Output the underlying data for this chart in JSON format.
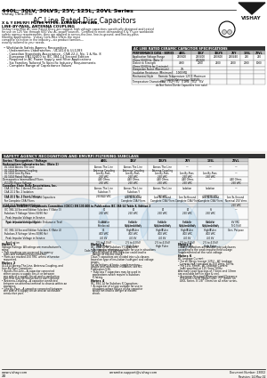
{
  "title_series": "440L, 30LV, 30LVS, 25Y, 125L, 20VL Series",
  "subtitle_company": "Vishay Cera-Mite",
  "subtitle_product": "AC Line Rated Disc Capacitors",
  "section1_title": "X & Y EMI/RFI FILTER TYPES: ACROSS-THE-LINE,\nLINE-BY-PASS, ANTENNA COUPLING",
  "body_lines": [
    "Vishay Cera-Mite AC Line Rated Discs are rugged, high voltage capacitors specifically designed and tested",
    "for use on 125 Vac through 600 Vac AC power sources.  Certified to meet demanding X & Y type worldwide",
    "safety agency requirements, they are applied in across-the-line, line-to-ground, and line-by-pass",
    "filtering applications.  Vishay Cera-Mite offers the most",
    "complete selection in the industry—six product families—",
    "exactly tailored to your needs."
  ],
  "bullets": [
    "Worldwide Safety Agency Recognition",
    "Underwriters Laboratories - UL1414 & UL1283",
    "Canadian Standards Association - CSA 22.2, No. 1 & No. 8",
    "European EN132400 to IEC 384-14 Second Edition",
    "Required in AC Power Supply and Filter Applications",
    "Six Families Tailored To Specific Industry Requirements",
    "Complete Range of Capacitance Values"
  ],
  "spec_table_title": "AC LINE RATED CERAMIC CAPACITOR SPECIFICATIONS",
  "spec_col_headers": [
    "PERFORMANCE DATA - SERIES",
    "440L",
    "30LY",
    "30LYS",
    "25Y",
    "125L",
    "20VL"
  ],
  "spec_rows": [
    [
      "Application Voltage Range\n(Vrms 50/60 Hz, (Note 1)",
      "250/600",
      "250/400\n250/600",
      "250/600",
      "250/440",
      "250",
      "250"
    ],
    [
      "Dielectric Strength\n(Vrms 50/60 Hz for 1 minute)",
      "4000",
      "2000",
      "2500",
      "2500",
      "2000",
      "1000"
    ],
    [
      "Dissipation Factor (Maximum)",
      "2%",
      "",
      "",
      "",
      "",
      ""
    ],
    [
      "Insulation Resistance (Minimum)",
      "1000 MΩ",
      "",
      "",
      "",
      "",
      ""
    ],
    [
      "Mechanical Style",
      "Remote Temperature 125°C Maximum\nCoating Material per UL8549",
      "",
      "",
      "",
      "",
      ""
    ],
    [
      "Temperature Characteristic",
      "Y5U   Y5U   Y5U   X 1ME   Y5U   Y5V\ndo Not Series Divide Capacitors (see note)",
      "",
      "",
      "",
      "",
      ""
    ]
  ],
  "safety_table_title": "SAFETY AGENCY RECOGNITION AND EMI/RFI FILTERING SUBCLASS",
  "safety_col_headers": [
    "Series / Recognition / Voltage",
    "440L",
    "30LY",
    "30LYS",
    "25Y",
    "125L",
    "20VL"
  ],
  "safety_rows": [
    {
      "label": "Underwriters Laboratories Inc.  (Note 2)",
      "vals": [
        "",
        "",
        "",
        "",
        "",
        ""
      ],
      "header": true
    },
    {
      "label": "  UL 1414 Across The Line\n  UL 1414 Antenna-Coupling",
      "vals": [
        "Across The Line\nAntenna Coupling",
        "Across The Line\nAntenna Coupling",
        "Across The Line\nAntenna-Coupling",
        "—",
        "—",
        "—"
      ],
      "header": false
    },
    {
      "label": "  UL 1414 Line-By-Pass\n  UL 1414 Rated Voltage",
      "vals": [
        "Line-By-Pass\n250 VRC",
        "Line-By-Pass\n250 VRC",
        "Line-By-Pass\n250 VRC",
        "Line-By-Pass\n250 VRC",
        "Line-By-Pass\n250 VRC",
        "—"
      ],
      "header": false
    },
    {
      "label": "Demagnetics International Filters\n  VL1283 Power Voltage",
      "vals": [
        "440 Ohms\n250 VRC",
        "440 Ohms\n250 VRC",
        "440 Ohms\n250 VRC",
        "440 Ohms\n250 VRC",
        "—",
        "440 Ohms\n250 VRC"
      ],
      "header": false
    },
    {
      "label": "Canadian State Body Associations, Inc.",
      "vals": [
        "",
        "",
        "",
        "",
        "",
        ""
      ],
      "header": true
    },
    {
      "label": "  CSA 22.2 No. 1 Across-The-Line\n  CSA 22.2 No. 2 Isolation\n  CSA 22.2 No. 3 Rated Voltage",
      "vals": [
        "Across The Line\nSubclass Y\n250/600 VRC",
        "Across The Line\nSubclass Y\n250/600 VRC",
        "Across The Line\n\n250 VRC",
        "Isolation\n\n—",
        "Isolation\n\n250/600 VRC",
        "—"
      ],
      "header": false
    },
    {
      "label": "  CSA 22.2 No. 4 Line-to-Ground Capacitors\n  For Complete CSA Filters\n  CSA 22.4 No. 5 Rated Voltage",
      "vals": [
        "—",
        "Line-To-Ground\nComplete CSA Filters",
        "Line-To-Ground\nComplete CSA Filters",
        "Line-To-Ground\nComplete CSA Filters",
        "Line-To-Ground\nComplete CSA Filters",
        "Line-To-Ground\nNominal 250 Vrms\n250 VRC"
      ],
      "header": false
    },
    {
      "label": "European CENELEC Components Committee (CECC) EN 130 400 to Publication IEC 384-14 Table 8, Edition 2",
      "vals": [
        "",
        "",
        "",
        "",
        "",
        ""
      ],
      "header": true
    },
    {
      "label": "  IEC 384-14 Second Edition Subclass Y (Note 3)\n  Subclass Y Voltage (Vrms 50/60 Hz)\n    Peak Impulse Voltage in Service\n    Type of Insulation (Subtype)",
      "vals": [
        "Y1\n250 VRC\n\nDouble or\nReinforced",
        "Y2\n250 VRC\n\nBasic or\nSupplementary",
        "Y2\n250 VRC\n\nBasic or\nSupplementary",
        "Y2\n250 VRC\n\nBasic or\nSupplementary",
        "Ya\n250 VRC\n\nBasic or\nSupplementary",
        "—"
      ],
      "header": false
    },
    {
      "label": "    Peak Impulse Voltage (Before Endurance Test)",
      "vals": [
        "8 kV",
        "8 kV\n2.5 to 4.0 kV\nHigh Pulse",
        "8 kV\n2.5 to 4.0 kV\nHigh Pulse",
        "8 kV\n2.5 to 4.0 kV\nHigh Pulse",
        "4.0 kV\n2.5 to 4.0 kV\nHigh Pulse",
        "kV VRC\nTo 0.9 kV\nGen. Purpose"
      ],
      "header": false
    },
    {
      "label": "  IEC 384-14 Second Edition Subclass X (Note 4)\n  Subclass X Voltage (Vrms 50/60 Hz)\n    Peak Impulse Voltage in Service\n    Application",
      "vals": [
        "X1\n400 VRC\n4.0 kV\n2.5 to 4.0 kV\nHigh Pulse\nCode 440 - 25/32 x 125/500 days",
        "X1\n400 VRC\n4.0 kV\n2.5 to 4.0 kV\nHigh Pulse",
        "X1\n400 VRC\n4.0 kV\n2.5 to 4.0 kV\nHigh Pulse",
        "X1\n400 VRC\n4.0 kV\n2.5 to 4.0 kV\nHigh Pulse",
        "X1\n400 VRC\n4.0 kV\n2.5 to 4.0 kV\nHigh Pulse",
        "—"
      ],
      "header": false
    }
  ],
  "notes": [
    {
      "title": "Notes 1",
      "lines": [
        "Voltage Ratings: All ratings are manufacturer's",
        "rating.",
        "• Part markings are governed by agency",
        "  rules and customer requirements.",
        "• Parts are marked 250 VRC unless otherwise",
        "  requested."
      ]
    },
    {
      "title": "Notes 2",
      "lines": [
        "UL1414 Across-The-Line, Antenna-Coupling, and",
        "Line-By-Pass Capacitors:",
        "• Across-The-Line—A capacitor connected",
        "  either across a supply circuit or between",
        "  one side of a supply circuit and a conductive",
        "  part that may be connected to earth ground.",
        "• Antenna-Coupling—A capacitor connected",
        "  between an antenna terminal to chassis within an",
        "  appliance.",
        "• Line-By-Pass—A capacitor connected between",
        "  one side of a supply circuit and an accessible",
        "  conductive part."
      ]
    },
    {
      "title": "Notes 3",
      "lines": [
        "IEC 384-14 for Subclass Y Capacitors:",
        "• A capacitor of a type suitable for use in situations",
        "  where failure of the capacitor could lead to",
        "  danger of electric shock.",
        "Class Y capacitors are divided into sub-classes",
        "based on type of insulation (subtype) and voltage",
        "ranges.",
        "For definitions of basic, supplementary,",
        "double and reinforced insulation, see IEC",
        "Publication 536.",
        "• Subclass Y capacitors may be used in",
        "  applications which require a Subclass",
        "  X rating."
      ]
    },
    {
      "title": "Notes 4",
      "lines": [
        "IEC 384-14 for Subclass X Capacitors:",
        "• A capacitor of a type suitable for use in",
        "  situations where failure of the capacitor",
        "  would not lead to danger of electric",
        "  shock."
      ]
    },
    {
      "title": "Notes 5",
      "lines": [
        "Class X capacitors are divided into subclasses",
        "according to the peak impulse field voltage",
        "Supplemented on the next voltage."
      ]
    },
    {
      "title": "Notes 6",
      "lines": [
        "AC Leakage Current:",
        "• For all Series (except 125L) - AC Leakage",
        "  Current (mA) specified at 250 Vrms, 60 Hz.",
        "• For 125L Series - AC Leakage Current",
        "  (mA) specified at 125 Vrms, 60Hz.",
        "Alternate Lead Spacings of 7.5mm and 10mm",
        "are available both in tape & reel.",
        "• European Required Minimum Lead Clearance",
        "  (Prevents Use of Media Coils): 7/7 (6mm) on",
        "  440L Series, 8 1/8\" (3mm) on all other series."
      ]
    }
  ],
  "footer_left": "www.vishay.com",
  "footer_center": "ceramite.support@vishay.com",
  "footer_right": "Document Number: 23002\nRevision: 14-May-02",
  "page_number": "20",
  "bg_color": "#f5f3ef",
  "dark_header_bg": "#333333",
  "accent_blue": "#7ab0d8"
}
